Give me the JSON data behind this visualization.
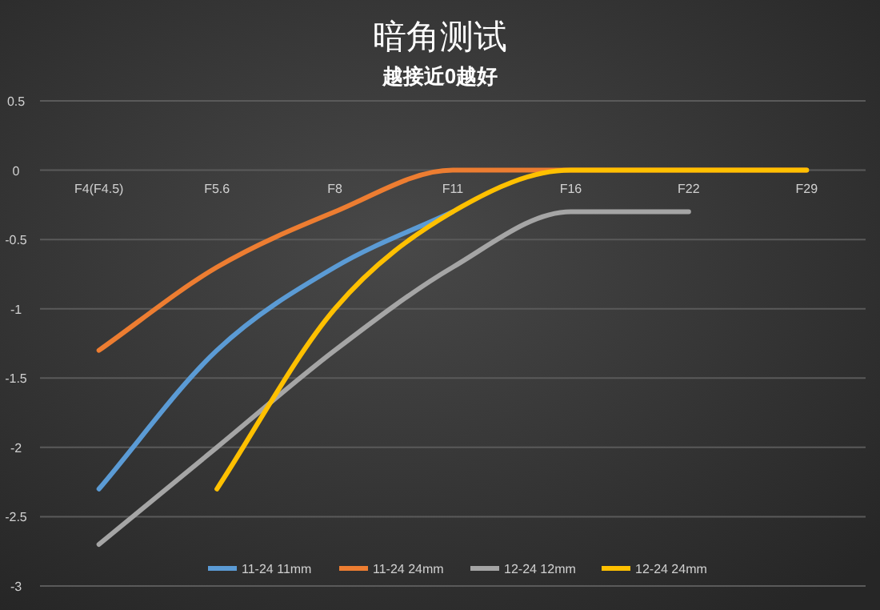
{
  "chart_data": {
    "type": "line",
    "title": "暗角测试",
    "subtitle": "越接近0越好",
    "categories": [
      "F4(F4.5)",
      "F5.6",
      "F8",
      "F11",
      "F16",
      "F22",
      "F29"
    ],
    "series": [
      {
        "name": "11-24 11mm",
        "color": "#5b9bd5",
        "values": [
          -2.3,
          -1.3,
          -0.7,
          -0.3,
          null,
          null,
          null
        ]
      },
      {
        "name": "11-24 24mm",
        "color": "#ed7d31",
        "values": [
          -1.3,
          -0.7,
          -0.3,
          0,
          0,
          0,
          0
        ]
      },
      {
        "name": "12-24 12mm",
        "color": "#a5a5a5",
        "values": [
          -2.7,
          -2.0,
          -1.3,
          -0.7,
          -0.3,
          -0.3,
          null
        ]
      },
      {
        "name": "12-24 24mm",
        "color": "#ffc000",
        "values": [
          null,
          -2.3,
          -1.0,
          -0.3,
          0,
          0,
          0
        ]
      }
    ],
    "ylim": [
      -3,
      0.5
    ],
    "yticks": [
      -3,
      -2.5,
      -2,
      -1.5,
      -1,
      -0.5,
      0,
      0.5
    ],
    "grid": "y",
    "legend": "bottom",
    "marker": "none",
    "line_style": "solid"
  }
}
